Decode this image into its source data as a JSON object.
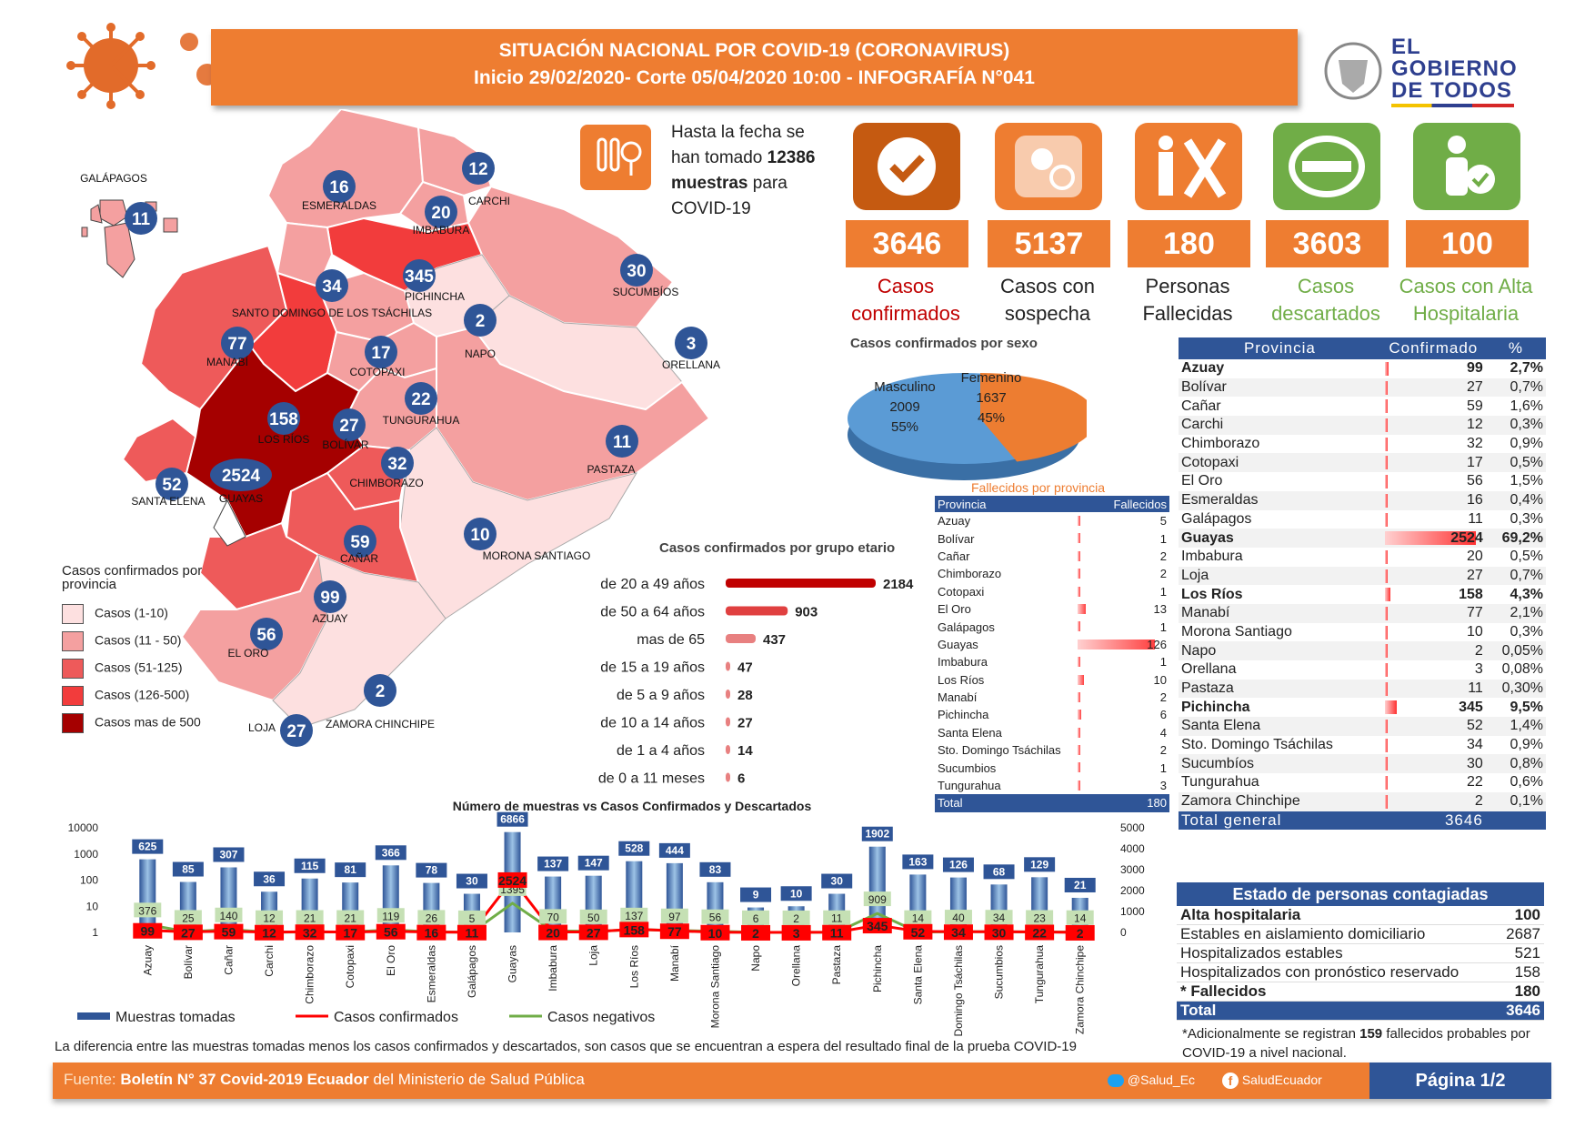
{
  "header": {
    "line1": "SITUACIÓN NACIONAL POR  COVID-19 (CORONAVIRUS)",
    "line2": "Inicio 29/02/2020- Corte 05/04/2020 10:00  - INFOGRAFÍA N°041"
  },
  "logo": {
    "line1": "EL",
    "line2": "GOBIERNO",
    "line3": "DE TODOS"
  },
  "samples": {
    "text_before": "Hasta la fecha se han tomado",
    "value": "12386",
    "text_bold": "muestras",
    "text_after": "para COVID-19"
  },
  "stats": [
    {
      "value": "3646",
      "label1": "Casos",
      "label2": "confirmados",
      "color": "#c00000"
    },
    {
      "value": "5137",
      "label1": "Casos con",
      "label2": "sospecha",
      "color": "#222222"
    },
    {
      "value": "180",
      "label1": "Personas",
      "label2": "Fallecidas",
      "color": "#222222"
    },
    {
      "value": "3603",
      "label1": "Casos",
      "label2": "descartados",
      "color": "#70ad47"
    },
    {
      "value": "100",
      "label1": "Casos con Alta",
      "label2": "Hospitalaria",
      "color": "#70ad47"
    }
  ],
  "map": {
    "legend_title": "Casos confirmados por provincia",
    "legend": [
      {
        "label": "Casos (1-10)",
        "color": "#fde0e0"
      },
      {
        "label": "Casos (11 - 50)",
        "color": "#f4a0a0"
      },
      {
        "label": "Casos (51-125)",
        "color": "#ee5a5a"
      },
      {
        "label": "Casos (126-500)",
        "color": "#f23c3c"
      },
      {
        "label": "Casos mas de 500",
        "color": "#a50000"
      }
    ],
    "provinces": [
      {
        "name": "GALÁPAGOS",
        "value": "11"
      },
      {
        "name": "ESMERALDAS",
        "value": "16"
      },
      {
        "name": "CARCHI",
        "value": "12"
      },
      {
        "name": "IMBABURA",
        "value": "20"
      },
      {
        "name": "PICHINCHA",
        "value": "345"
      },
      {
        "name": "SANTO DOMINGO DE LOS TSÁCHILAS",
        "value": "34"
      },
      {
        "name": "SUCUMBÍOS",
        "value": "30"
      },
      {
        "name": "NAPO",
        "value": "2"
      },
      {
        "name": "ORELLANA",
        "value": "3"
      },
      {
        "name": "MANABÍ",
        "value": "77"
      },
      {
        "name": "COTOPAXI",
        "value": "17"
      },
      {
        "name": "TUNGURAHUA",
        "value": "22"
      },
      {
        "name": "LOS RÍOS",
        "value": "158"
      },
      {
        "name": "BOLÍVAR",
        "value": "27"
      },
      {
        "name": "PASTAZA",
        "value": "11"
      },
      {
        "name": "CHIMBORAZO",
        "value": "32"
      },
      {
        "name": "SANTA ELENA",
        "value": "52"
      },
      {
        "name": "GUAYAS",
        "value": "2524"
      },
      {
        "name": "MORONA SANTIAGO",
        "value": "10"
      },
      {
        "name": "CAÑAR",
        "value": "59"
      },
      {
        "name": "AZUAY",
        "value": "99"
      },
      {
        "name": "EL ORO",
        "value": "56"
      },
      {
        "name": "ZAMORA CHINCHIPE",
        "value": "2"
      },
      {
        "name": "LOJA",
        "value": "27"
      }
    ]
  },
  "sex_pie": {
    "title": "Casos confirmados por sexo",
    "masc_label": "Masculino",
    "masc_value": "2009",
    "masc_pct": "55%",
    "fem_label": "Femenino",
    "fem_value": "1637",
    "fem_pct": "45%"
  },
  "fallecidos": {
    "title": "Fallecidos por provincia",
    "col1": "Provincia",
    "col2": "Fallecidos",
    "rows": [
      [
        "Azuay",
        5
      ],
      [
        "Bolívar",
        1
      ],
      [
        "Cañar",
        2
      ],
      [
        "Chimborazo",
        2
      ],
      [
        "Cotopaxi",
        1
      ],
      [
        "El Oro",
        13
      ],
      [
        "Galápagos",
        1
      ],
      [
        "Guayas",
        126
      ],
      [
        "Imbabura",
        1
      ],
      [
        "Los Ríos",
        10
      ],
      [
        "Manabí",
        2
      ],
      [
        "Pichincha",
        6
      ],
      [
        "Santa Elena",
        4
      ],
      [
        "Sto. Domingo Tsáchilas",
        2
      ],
      [
        "Sucumbios",
        1
      ],
      [
        "Tungurahua",
        3
      ]
    ],
    "total_label": "Total",
    "total": "180"
  },
  "age": {
    "title": "Casos confirmados por grupo etario",
    "rows": [
      [
        "de 20 a 49 años",
        2184
      ],
      [
        "de 50 a 64 años",
        903
      ],
      [
        "mas de 65",
        437
      ],
      [
        "de 15 a 19 años",
        47
      ],
      [
        "de 5 a 9 años",
        28
      ],
      [
        "de 10 a 14 años",
        27
      ],
      [
        "de 1 a 4 años",
        14
      ],
      [
        "de 0 a 11 meses",
        6
      ]
    ]
  },
  "province_table": {
    "col1": "Provincia",
    "col2": "Confirmado",
    "col3": "%",
    "rows": [
      [
        "Azuay",
        "99",
        "2,7%",
        true
      ],
      [
        "Bolívar",
        "27",
        "0,7%",
        false
      ],
      [
        "Cañar",
        "59",
        "1,6%",
        false
      ],
      [
        "Carchi",
        "12",
        "0,3%",
        false
      ],
      [
        "Chimborazo",
        "32",
        "0,9%",
        false
      ],
      [
        "Cotopaxi",
        "17",
        "0,5%",
        false
      ],
      [
        "El Oro",
        "56",
        "1,5%",
        false
      ],
      [
        "Esmeraldas",
        "16",
        "0,4%",
        false
      ],
      [
        "Galápagos",
        "11",
        "0,3%",
        false
      ],
      [
        "Guayas",
        "2524",
        "69,2%",
        true
      ],
      [
        "Imbabura",
        "20",
        "0,5%",
        false
      ],
      [
        "Loja",
        "27",
        "0,7%",
        false
      ],
      [
        "Los Ríos",
        "158",
        "4,3%",
        true
      ],
      [
        "Manabí",
        "77",
        "2,1%",
        false
      ],
      [
        "Morona Santiago",
        "10",
        "0,3%",
        false
      ],
      [
        "Napo",
        "2",
        "0,05%",
        false
      ],
      [
        "Orellana",
        "3",
        "0,08%",
        false
      ],
      [
        "Pastaza",
        "11",
        "0,30%",
        false
      ],
      [
        "Pichincha",
        "345",
        "9,5%",
        true
      ],
      [
        "Santa Elena",
        "52",
        "1,4%",
        false
      ],
      [
        "Sto. Domingo Tsáchilas",
        "34",
        "0,9%",
        false
      ],
      [
        "Sucumbíos",
        "30",
        "0,8%",
        false
      ],
      [
        "Tungurahua",
        "22",
        "0,6%",
        false
      ],
      [
        "Zamora Chinchipe",
        "2",
        "0,1%",
        false
      ]
    ],
    "total_label": "Total general",
    "total": "3646"
  },
  "estado": {
    "title": "Estado de personas contagiadas",
    "rows": [
      [
        "Alta hospitalaria",
        "100",
        true
      ],
      [
        "Estables en aislamiento domiciliario",
        "2687",
        false
      ],
      [
        "Hospitalizados estables",
        "521",
        false
      ],
      [
        "Hospitalizados con pronóstico reservado",
        "158",
        false
      ],
      [
        "* Fallecidos",
        "180",
        true
      ]
    ],
    "total_label": "Total",
    "total": "3646"
  },
  "note": {
    "prefix": "*Adicionalmente se registran",
    "value": "159",
    "suffix": "fallecidos probables por COVID-19 a nivel nacional."
  },
  "bottom_note": "La diferencia entre las muestras tomadas menos los casos confirmados y descartados, son casos que se encuentran a espera del resultado final de la prueba COVID-19",
  "footer": {
    "fuente": "Fuente:",
    "boletin": "Boletín N° 37 Covid-2019 Ecuador",
    "del": "del",
    "ministerio": "Ministerio de Salud Pública",
    "twitter": "@Salud_Ec",
    "facebook": "SaludEcuador",
    "page": "Página 1/2"
  },
  "chart_data": [
    {
      "type": "bar",
      "title": "Casos confirmados por grupo etario",
      "categories": [
        "de 20 a 49 años",
        "de 50 a 64 años",
        "mas de 65",
        "de 15 a 19 años",
        "de 5 a 9 años",
        "de 10 a 14 años",
        "de 1 a 4 años",
        "de 0 a 11 meses"
      ],
      "values": [
        2184,
        903,
        437,
        47,
        28,
        27,
        14,
        6
      ]
    },
    {
      "type": "pie",
      "title": "Casos confirmados por sexo",
      "categories": [
        "Masculino",
        "Femenino"
      ],
      "values": [
        2009,
        1637
      ],
      "percent": [
        "55%",
        "45%"
      ],
      "colors": [
        "#5b9bd5",
        "#ed7d31"
      ]
    },
    {
      "type": "bar",
      "title": "Número de muestras vs Casos Confirmados y Descartados",
      "categories": [
        "Azuay",
        "Bolívar",
        "Cañar",
        "Carchi",
        "Chimborazo",
        "Cotopaxi",
        "El Oro",
        "Esmeraldas",
        "Galápagos",
        "Guayas",
        "Imbabura",
        "Loja",
        "Los Ríos",
        "Manabí",
        "Morona Santiago",
        "Napo",
        "Orellana",
        "Pastaza",
        "Pichincha",
        "Santa Elena",
        "Sto. Domingo Tsáchilas",
        "Sucumbios",
        "Tungurahua",
        "Zamora Chinchipe"
      ],
      "y_left_ticks": [
        "10000",
        "1000",
        "100",
        "10",
        "1"
      ],
      "y_right_ticks": [
        "5000",
        "4000",
        "3000",
        "2000",
        "1000",
        "0"
      ],
      "y_left_scale": "log",
      "series": [
        {
          "name": "Muestras tomadas",
          "type": "bar",
          "values": [
            625,
            85,
            307,
            36,
            115,
            81,
            366,
            78,
            30,
            6866,
            137,
            147,
            528,
            444,
            83,
            9,
            10,
            30,
            1902,
            163,
            126,
            68,
            129,
            21
          ],
          "color": "#2f5597"
        },
        {
          "name": "Casos confirmados",
          "type": "line",
          "values": [
            99,
            27,
            59,
            12,
            32,
            17,
            56,
            16,
            11,
            2524,
            20,
            27,
            158,
            77,
            10,
            2,
            3,
            11,
            345,
            52,
            34,
            30,
            22,
            2
          ],
          "color": "#ff0000"
        },
        {
          "name": "Casos negativos",
          "type": "line",
          "values": [
            376,
            25,
            140,
            12,
            21,
            21,
            119,
            26,
            5,
            1395,
            70,
            50,
            137,
            97,
            56,
            6,
            2,
            11,
            909,
            14,
            40,
            34,
            23,
            14
          ],
          "color": "#70ad47"
        }
      ]
    }
  ]
}
